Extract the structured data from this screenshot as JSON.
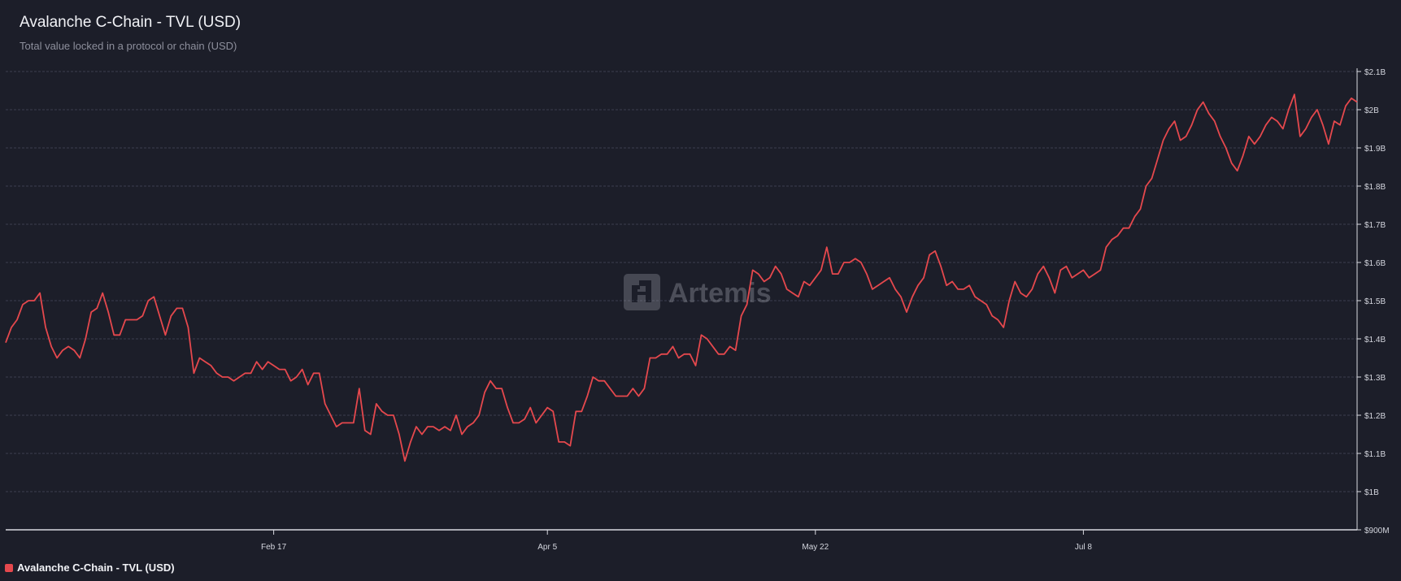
{
  "header": {
    "title": "Avalanche C-Chain - TVL (USD)",
    "subtitle": "Total value locked in a protocol or chain (USD)"
  },
  "watermark": {
    "text": "Artemis",
    "icon": "artemis-logo-icon"
  },
  "legend": {
    "label": "Avalanche C-Chain - TVL (USD)",
    "color": "#e5484d"
  },
  "colors": {
    "background": "#1c1e29",
    "line": "#e5484d",
    "grid": "#3c3f4e",
    "axis": "#d8d9e0",
    "tick_text": "#d4d6de"
  },
  "chart_data": {
    "type": "line",
    "title": "Avalanche C-Chain - TVL (USD)",
    "subtitle": "Total value locked in a protocol or chain (USD)",
    "x_ticks": [
      "Feb 17",
      "Apr 5",
      "May 22",
      "Jul 8"
    ],
    "y_ticks": [
      "$900M",
      "$1B",
      "$1.1B",
      "$1.2B",
      "$1.3B",
      "$1.4B",
      "$1.5B",
      "$1.6B",
      "$1.7B",
      "$1.8B",
      "$1.9B",
      "$2B",
      "$2.1B"
    ],
    "ylim": [
      0.9,
      2.1
    ],
    "y_unit": "billions USD",
    "x_start": "2024-01-01",
    "grid": true,
    "legend_position": "bottom-left",
    "series": [
      {
        "name": "Avalanche C-Chain - TVL (USD)",
        "color": "#e5484d",
        "values": [
          1.39,
          1.43,
          1.45,
          1.49,
          1.5,
          1.5,
          1.52,
          1.43,
          1.38,
          1.35,
          1.37,
          1.38,
          1.37,
          1.35,
          1.4,
          1.47,
          1.48,
          1.52,
          1.47,
          1.41,
          1.41,
          1.45,
          1.45,
          1.45,
          1.46,
          1.5,
          1.51,
          1.46,
          1.41,
          1.46,
          1.48,
          1.48,
          1.43,
          1.31,
          1.35,
          1.34,
          1.33,
          1.31,
          1.3,
          1.3,
          1.29,
          1.3,
          1.31,
          1.31,
          1.34,
          1.32,
          1.34,
          1.33,
          1.32,
          1.32,
          1.29,
          1.3,
          1.32,
          1.28,
          1.31,
          1.31,
          1.23,
          1.2,
          1.17,
          1.18,
          1.18,
          1.18,
          1.27,
          1.16,
          1.15,
          1.23,
          1.21,
          1.2,
          1.2,
          1.15,
          1.08,
          1.13,
          1.17,
          1.15,
          1.17,
          1.17,
          1.16,
          1.17,
          1.16,
          1.2,
          1.15,
          1.17,
          1.18,
          1.2,
          1.26,
          1.29,
          1.27,
          1.27,
          1.22,
          1.18,
          1.18,
          1.19,
          1.22,
          1.18,
          1.2,
          1.22,
          1.21,
          1.13,
          1.13,
          1.12,
          1.21,
          1.21,
          1.25,
          1.3,
          1.29,
          1.29,
          1.27,
          1.25,
          1.25,
          1.25,
          1.27,
          1.25,
          1.27,
          1.35,
          1.35,
          1.36,
          1.36,
          1.38,
          1.35,
          1.36,
          1.36,
          1.33,
          1.41,
          1.4,
          1.38,
          1.36,
          1.36,
          1.38,
          1.37,
          1.46,
          1.49,
          1.58,
          1.57,
          1.55,
          1.56,
          1.59,
          1.57,
          1.53,
          1.52,
          1.51,
          1.55,
          1.54,
          1.56,
          1.58,
          1.64,
          1.57,
          1.57,
          1.6,
          1.6,
          1.61,
          1.6,
          1.57,
          1.53,
          1.54,
          1.55,
          1.56,
          1.53,
          1.51,
          1.47,
          1.51,
          1.54,
          1.56,
          1.62,
          1.63,
          1.59,
          1.54,
          1.55,
          1.53,
          1.53,
          1.54,
          1.51,
          1.5,
          1.49,
          1.46,
          1.45,
          1.43,
          1.5,
          1.55,
          1.52,
          1.51,
          1.53,
          1.57,
          1.59,
          1.56,
          1.52,
          1.58,
          1.59,
          1.56,
          1.57,
          1.58,
          1.56,
          1.57,
          1.58,
          1.64,
          1.66,
          1.67,
          1.69,
          1.69,
          1.72,
          1.74,
          1.8,
          1.82,
          1.87,
          1.92,
          1.95,
          1.97,
          1.92,
          1.93,
          1.96,
          2.0,
          2.02,
          1.99,
          1.97,
          1.93,
          1.9,
          1.86,
          1.84,
          1.88,
          1.93,
          1.91,
          1.93,
          1.96,
          1.98,
          1.97,
          1.95,
          2.0,
          2.04,
          1.93,
          1.95,
          1.98,
          2.0,
          1.96,
          1.91,
          1.97,
          1.96,
          2.01,
          2.03,
          2.02
        ]
      }
    ]
  }
}
